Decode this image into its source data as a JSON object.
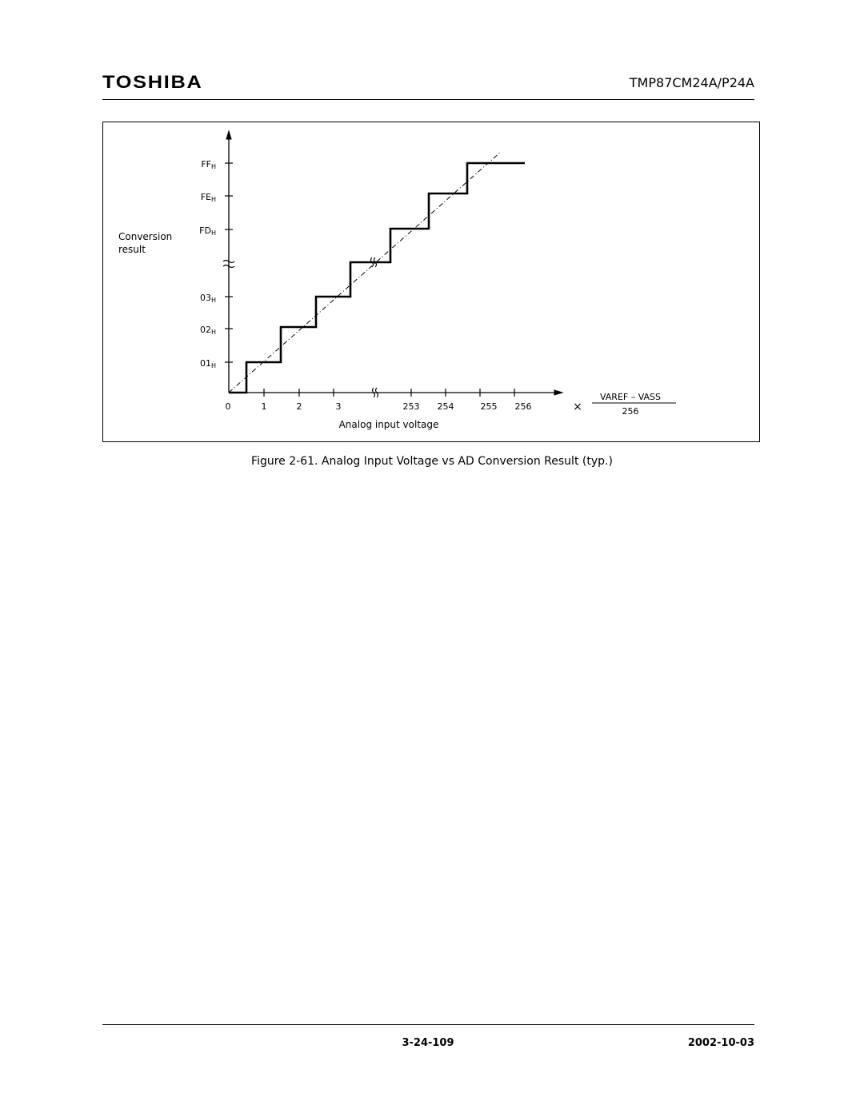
{
  "header": {
    "logo": "TOSHIBA",
    "document_id": "TMP87CM24A/P24A"
  },
  "figure": {
    "y_axis_label_line1": "Conversion",
    "y_axis_label_line2": "result",
    "y_ticks": [
      {
        "main": "FF",
        "sub": "H"
      },
      {
        "main": "FE",
        "sub": "H"
      },
      {
        "main": "FD",
        "sub": "H"
      },
      {
        "main": "03",
        "sub": "H"
      },
      {
        "main": "02",
        "sub": "H"
      },
      {
        "main": "01",
        "sub": "H"
      }
    ],
    "x_ticks": [
      "0",
      "1",
      "2",
      "3",
      "253",
      "254",
      "255",
      "256"
    ],
    "x_axis_label": "Analog input voltage",
    "multiplier": "×",
    "fraction_numerator": "VAREF – VASS",
    "fraction_denominator": "256"
  },
  "caption": "Figure 2-61.   Analog Input Voltage vs AD Conversion Result (typ.)",
  "footer": {
    "page_number": "3-24-109",
    "date": "2002-10-03"
  }
}
